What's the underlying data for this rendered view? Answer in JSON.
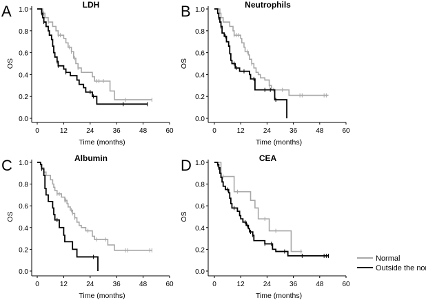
{
  "chart_data": [
    {
      "type": "line",
      "panel_label": "A",
      "title": "LDH",
      "xlabel": "Time (months)",
      "ylabel": "OS",
      "xlim": [
        0,
        60
      ],
      "ylim": [
        0,
        1
      ],
      "xticks": [
        "0",
        "12",
        "24",
        "36",
        "48",
        "60"
      ],
      "yticks": [
        "0.0",
        "0.2",
        "0.4",
        "0.6",
        "0.8",
        "1.0"
      ],
      "series": [
        {
          "name": "Normal",
          "color": "#a8a8a8",
          "steps": [
            [
              0,
              1
            ],
            [
              2.5,
              0.96
            ],
            [
              3.5,
              0.92
            ],
            [
              5,
              0.88
            ],
            [
              7,
              0.84
            ],
            [
              8.5,
              0.8
            ],
            [
              9.5,
              0.76
            ],
            [
              12,
              0.73
            ],
            [
              13,
              0.69
            ],
            [
              14,
              0.65
            ],
            [
              15.5,
              0.61
            ],
            [
              16.5,
              0.55
            ],
            [
              17.5,
              0.5
            ],
            [
              18.5,
              0.46
            ],
            [
              20,
              0.42
            ],
            [
              25,
              0.38
            ],
            [
              26,
              0.34
            ],
            [
              33,
              0.25
            ],
            [
              35,
              0.17
            ]
          ],
          "end": 52,
          "censored": [
            3,
            5,
            9.5,
            10.5,
            14.5,
            15.5,
            17,
            18.5,
            27,
            28,
            30,
            40,
            52
          ]
        },
        {
          "name": "Outside the norm",
          "color": "#000000",
          "steps": [
            [
              0,
              1
            ],
            [
              2,
              0.96
            ],
            [
              2.5,
              0.92
            ],
            [
              3,
              0.88
            ],
            [
              4,
              0.84
            ],
            [
              5,
              0.8
            ],
            [
              5.5,
              0.76
            ],
            [
              6.5,
              0.72
            ],
            [
              7,
              0.66
            ],
            [
              7.5,
              0.6
            ],
            [
              8,
              0.56
            ],
            [
              9,
              0.52
            ],
            [
              9.5,
              0.48
            ],
            [
              12,
              0.45
            ],
            [
              13,
              0.42
            ],
            [
              15,
              0.39
            ],
            [
              18,
              0.35
            ],
            [
              19,
              0.31
            ],
            [
              21,
              0.28
            ],
            [
              22,
              0.24
            ],
            [
              25,
              0.2
            ],
            [
              27,
              0.13
            ]
          ],
          "end": 50,
          "censored": [
            2,
            3,
            9,
            9.5,
            13,
            24,
            25.5,
            39,
            50
          ]
        }
      ]
    },
    {
      "type": "line",
      "panel_label": "B",
      "title": "Neutrophils",
      "xlabel": "Time (months)",
      "ylabel": "OS",
      "xlim": [
        0,
        60
      ],
      "ylim": [
        0,
        1
      ],
      "xticks": [
        "0",
        "12",
        "24",
        "36",
        "48",
        "60"
      ],
      "yticks": [
        "0.0",
        "0.2",
        "0.4",
        "0.6",
        "0.8",
        "1.0"
      ],
      "series": [
        {
          "name": "Normal",
          "color": "#a8a8a8",
          "steps": [
            [
              0,
              1
            ],
            [
              2.5,
              0.96
            ],
            [
              3,
              0.92
            ],
            [
              4,
              0.88
            ],
            [
              7,
              0.84
            ],
            [
              8.5,
              0.8
            ],
            [
              9,
              0.76
            ],
            [
              12,
              0.73
            ],
            [
              12.5,
              0.69
            ],
            [
              13.5,
              0.65
            ],
            [
              14,
              0.61
            ],
            [
              15.5,
              0.58
            ],
            [
              16,
              0.54
            ],
            [
              17,
              0.5
            ],
            [
              18,
              0.46
            ],
            [
              19,
              0.42
            ],
            [
              20,
              0.4
            ],
            [
              21,
              0.37
            ],
            [
              23,
              0.35
            ],
            [
              25,
              0.3
            ],
            [
              26,
              0.26
            ],
            [
              34,
              0.21
            ]
          ],
          "end": 52,
          "censored": [
            9,
            10,
            11,
            15,
            17,
            25,
            27,
            31,
            39,
            40,
            50,
            51
          ]
        },
        {
          "name": "Outside the norm",
          "color": "#000000",
          "steps": [
            [
              0,
              1
            ],
            [
              1.5,
              0.96
            ],
            [
              2,
              0.92
            ],
            [
              2.5,
              0.88
            ],
            [
              3,
              0.84
            ],
            [
              3.5,
              0.78
            ],
            [
              4.5,
              0.75
            ],
            [
              5.5,
              0.7
            ],
            [
              6.5,
              0.66
            ],
            [
              7,
              0.59
            ],
            [
              7.5,
              0.53
            ],
            [
              8,
              0.5
            ],
            [
              9.5,
              0.46
            ],
            [
              11.5,
              0.43
            ],
            [
              16,
              0.4
            ],
            [
              16.5,
              0.36
            ],
            [
              18.5,
              0.26
            ],
            [
              27.5,
              0.17
            ],
            [
              33,
              0
            ]
          ],
          "end": 33,
          "censored": [
            2,
            3,
            5,
            9,
            10,
            13.5,
            18,
            23,
            25.5,
            28
          ]
        }
      ]
    },
    {
      "type": "line",
      "panel_label": "C",
      "title": "Albumin",
      "xlabel": "Time (months)",
      "ylabel": "OS",
      "xlim": [
        0,
        60
      ],
      "ylim": [
        0,
        1
      ],
      "xticks": [
        "0",
        "12",
        "24",
        "36",
        "48",
        "60"
      ],
      "yticks": [
        "0.0",
        "0.2",
        "0.4",
        "0.6",
        "0.8",
        "1.0"
      ],
      "series": [
        {
          "name": "Normal",
          "color": "#a8a8a8",
          "steps": [
            [
              0,
              1
            ],
            [
              1.5,
              0.98
            ],
            [
              2,
              0.95
            ],
            [
              3,
              0.91
            ],
            [
              4,
              0.88
            ],
            [
              6,
              0.84
            ],
            [
              7,
              0.8
            ],
            [
              7.5,
              0.77
            ],
            [
              8,
              0.74
            ],
            [
              9,
              0.71
            ],
            [
              11,
              0.68
            ],
            [
              12.5,
              0.65
            ],
            [
              13.5,
              0.62
            ],
            [
              14,
              0.59
            ],
            [
              15,
              0.56
            ],
            [
              16,
              0.53
            ],
            [
              17,
              0.49
            ],
            [
              18,
              0.45
            ],
            [
              19,
              0.42
            ],
            [
              20,
              0.4
            ],
            [
              22,
              0.37
            ],
            [
              25,
              0.32
            ],
            [
              26,
              0.29
            ],
            [
              32,
              0.24
            ],
            [
              35,
              0.19
            ]
          ],
          "end": 52,
          "censored": [
            1.5,
            9,
            10,
            12.5,
            13,
            15.5,
            16,
            17,
            23,
            27,
            31,
            40,
            41,
            51,
            52
          ]
        },
        {
          "name": "Outside the norm",
          "color": "#000000",
          "steps": [
            [
              0,
              1
            ],
            [
              1.5,
              0.98
            ],
            [
              2,
              0.94
            ],
            [
              3,
              0.88
            ],
            [
              3.5,
              0.76
            ],
            [
              4,
              0.7
            ],
            [
              5,
              0.64
            ],
            [
              7,
              0.58
            ],
            [
              7.5,
              0.52
            ],
            [
              8,
              0.47
            ],
            [
              10,
              0.4
            ],
            [
              12,
              0.33
            ],
            [
              12.5,
              0.27
            ],
            [
              16,
              0.2
            ],
            [
              18,
              0.13
            ],
            [
              27.5,
              0
            ]
          ],
          "end": 27.5,
          "censored": [
            2,
            9,
            25.5
          ]
        }
      ]
    },
    {
      "type": "line",
      "panel_label": "D",
      "title": "CEA",
      "xlabel": "Time (months)",
      "ylabel": "OS",
      "xlim": [
        0,
        60
      ],
      "ylim": [
        0,
        1
      ],
      "xticks": [
        "0",
        "12",
        "24",
        "36",
        "48",
        "60"
      ],
      "yticks": [
        "0.0",
        "0.2",
        "0.4",
        "0.6",
        "0.8",
        "1.0"
      ],
      "series": [
        {
          "name": "Normal",
          "color": "#a8a8a8",
          "steps": [
            [
              0,
              1
            ],
            [
              3,
              0.87
            ],
            [
              9,
              0.73
            ],
            [
              16.5,
              0.65
            ],
            [
              18.5,
              0.58
            ],
            [
              20,
              0.48
            ],
            [
              25,
              0.37
            ],
            [
              35,
              0.18
            ]
          ],
          "end": 40,
          "censored": [
            4,
            10.5,
            23,
            28,
            39.5
          ]
        },
        {
          "name": "Outside the norm",
          "color": "#000000",
          "steps": [
            [
              0,
              1
            ],
            [
              1.5,
              0.98
            ],
            [
              2,
              0.95
            ],
            [
              2.5,
              0.9
            ],
            [
              3,
              0.86
            ],
            [
              3.5,
              0.82
            ],
            [
              4,
              0.78
            ],
            [
              5,
              0.75
            ],
            [
              6.5,
              0.72
            ],
            [
              7,
              0.67
            ],
            [
              7.5,
              0.62
            ],
            [
              8,
              0.58
            ],
            [
              10.5,
              0.55
            ],
            [
              11.5,
              0.51
            ],
            [
              12,
              0.48
            ],
            [
              13,
              0.45
            ],
            [
              14.5,
              0.42
            ],
            [
              15.5,
              0.39
            ],
            [
              16,
              0.36
            ],
            [
              17.5,
              0.33
            ],
            [
              18,
              0.28
            ],
            [
              23,
              0.25
            ],
            [
              26.5,
              0.2
            ],
            [
              28,
              0.18
            ],
            [
              33.5,
              0.14
            ]
          ],
          "end": 52,
          "censored": [
            1.5,
            2,
            6,
            9,
            14,
            15,
            16.5,
            17.5,
            23,
            26,
            32,
            40,
            50,
            51,
            52
          ]
        }
      ]
    }
  ],
  "legend": {
    "position": "bottom-right",
    "items": [
      {
        "label": "Normal",
        "color": "#a8a8a8"
      },
      {
        "label": "Outside the norm",
        "color": "#000000"
      }
    ]
  }
}
